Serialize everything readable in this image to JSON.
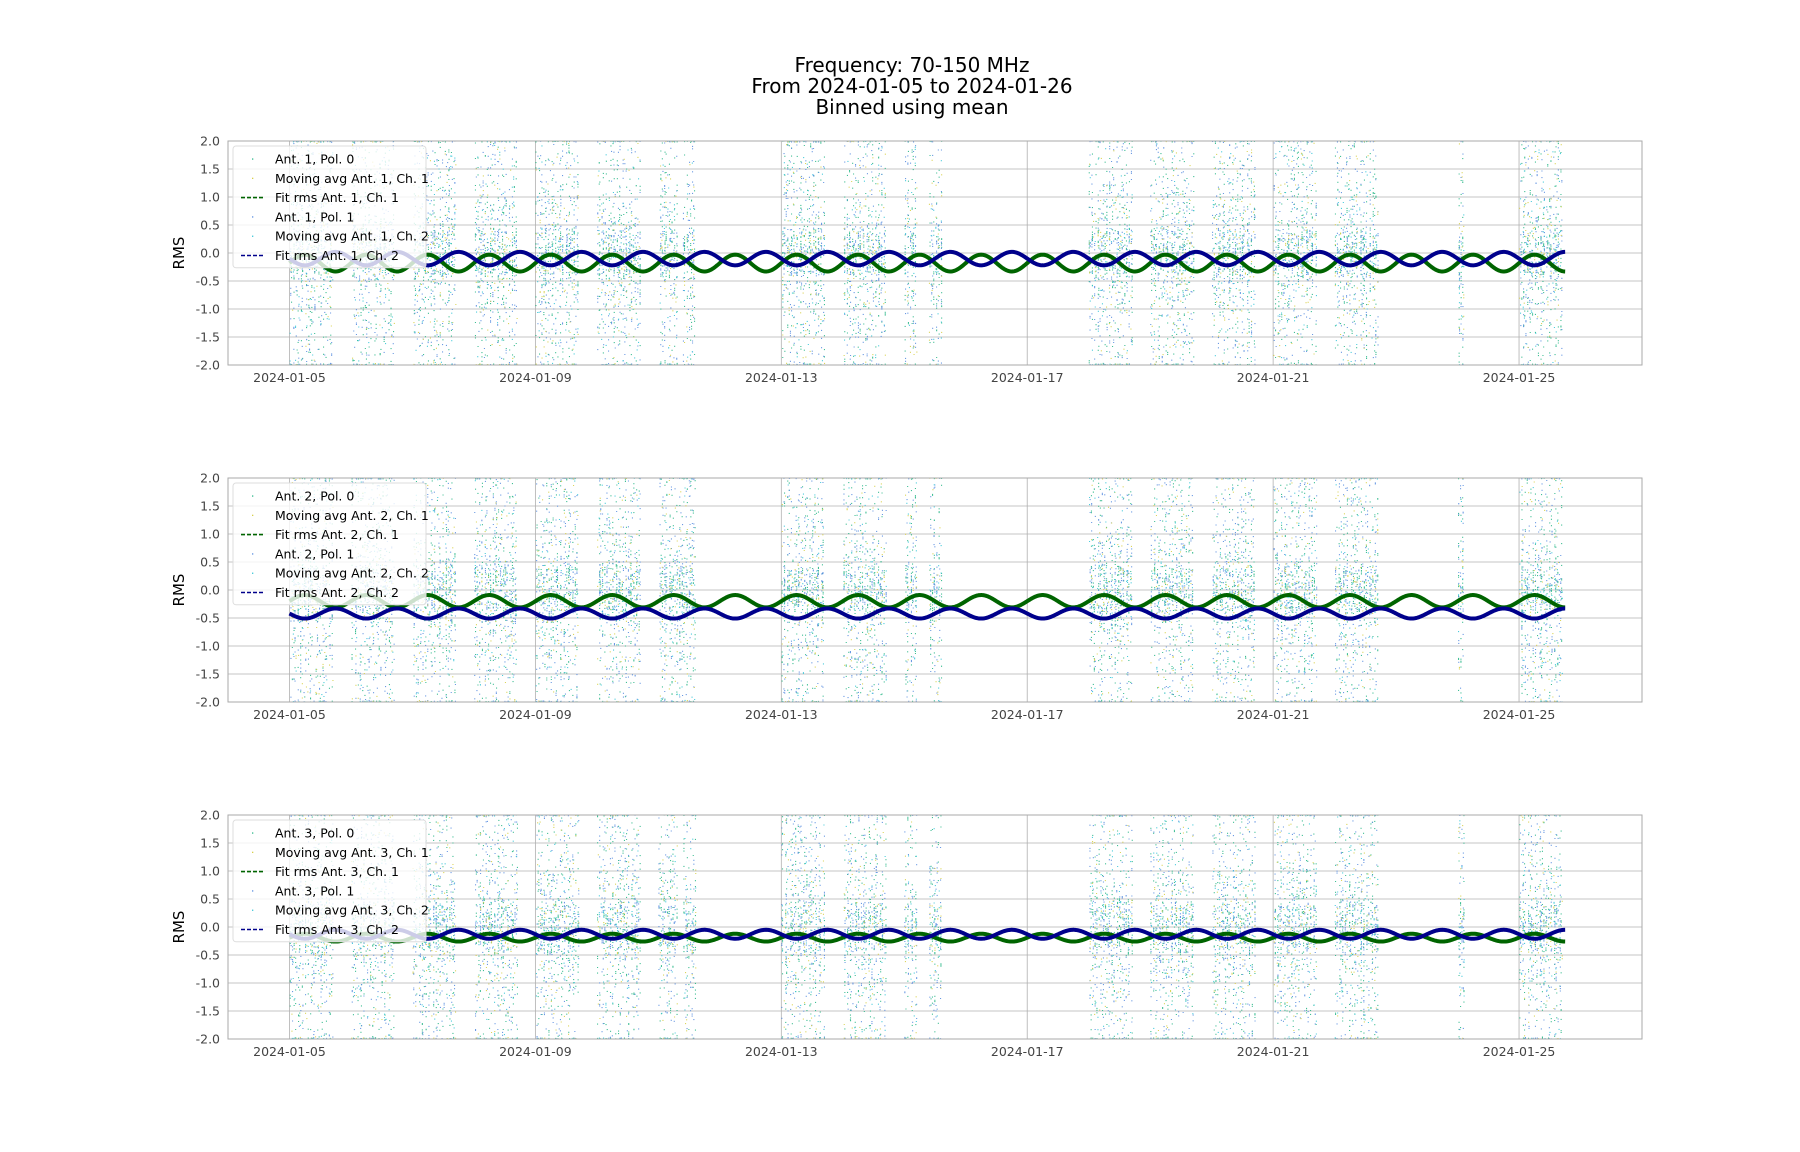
{
  "title_lines": [
    "Frequency: 70-150 MHz",
    "From 2024-01-05 to 2024-01-26",
    "Binned using mean"
  ],
  "colors": {
    "pol0": "#2cb88a",
    "moving_ch1": "#d8d04a",
    "pol1": "#5b8fe0",
    "moving_ch2": "#38c6d8",
    "fit_ch1": "#006400",
    "fit_ch2": "#00008b",
    "grid": "#b0b0b0",
    "axes_edge": "#aaaaaa"
  },
  "chart_data": [
    {
      "type": "scatter",
      "ylabel": "RMS",
      "ylim": [
        -2.0,
        2.0
      ],
      "yticks": [
        "2.0",
        "1.5",
        "1.0",
        "0.5",
        "0.0",
        "-0.5",
        "-1.0",
        "-1.5",
        "-2.0"
      ],
      "xlim": [
        "2024-01-04",
        "2024-01-27"
      ],
      "xticks": [
        "2024-01-05",
        "2024-01-09",
        "2024-01-13",
        "2024-01-17",
        "2024-01-21",
        "2024-01-25"
      ],
      "grid": true,
      "legend_position": "upper-left",
      "legend": [
        {
          "label": "Ant. 1, Pol. 0",
          "style": "dot",
          "color_key": "pol0"
        },
        {
          "label": "Moving avg Ant. 1, Ch. 1",
          "style": "dot",
          "color_key": "moving_ch1"
        },
        {
          "label": "Fit rms Ant. 1, Ch. 1",
          "style": "dashed",
          "color_key": "fit_ch1"
        },
        {
          "label": "Ant. 1, Pol. 1",
          "style": "dot",
          "color_key": "pol1"
        },
        {
          "label": "Moving avg Ant. 1, Ch. 2",
          "style": "dot",
          "color_key": "moving_ch2"
        },
        {
          "label": "Fit rms Ant. 1, Ch. 2",
          "style": "dashed",
          "color_key": "fit_ch2"
        }
      ],
      "data_segments_days": [
        [
          5.0,
          5.7
        ],
        [
          6.0,
          6.7
        ],
        [
          7.0,
          7.7
        ],
        [
          8.0,
          8.7
        ],
        [
          9.0,
          9.7
        ],
        [
          10.0,
          10.7
        ],
        [
          11.0,
          11.3
        ],
        [
          11.4,
          11.6
        ],
        [
          13.0,
          13.7
        ],
        [
          14.0,
          14.7
        ],
        [
          15.0,
          15.2
        ],
        [
          15.4,
          15.6
        ],
        [
          18.0,
          18.7
        ],
        [
          19.0,
          19.7
        ],
        [
          20.0,
          20.7
        ],
        [
          21.0,
          21.7
        ],
        [
          22.0,
          22.7
        ],
        [
          24.0,
          24.1
        ],
        [
          25.0,
          25.7
        ]
      ],
      "fits": [
        {
          "name": "Fit rms Ant. 1, Ch. 1",
          "color_key": "fit_ch1",
          "mean": -0.18,
          "amplitude": 0.15,
          "period_days": 1.0,
          "phase": 0.0,
          "x_range": [
            "2024-01-05",
            "2024-01-25 18:00"
          ]
        },
        {
          "name": "Fit rms Ant. 1, Ch. 2",
          "color_key": "fit_ch2",
          "mean": -0.1,
          "amplitude": 0.12,
          "period_days": 1.0,
          "phase": 3.14159,
          "x_range": [
            "2024-01-05",
            "2024-01-25 18:00"
          ]
        }
      ]
    },
    {
      "type": "scatter",
      "ylabel": "RMS",
      "ylim": [
        -2.0,
        2.0
      ],
      "yticks": [
        "2.0",
        "1.5",
        "1.0",
        "0.5",
        "0.0",
        "-0.5",
        "-1.0",
        "-1.5",
        "-2.0"
      ],
      "xlim": [
        "2024-01-04",
        "2024-01-27"
      ],
      "xticks": [
        "2024-01-05",
        "2024-01-09",
        "2024-01-13",
        "2024-01-17",
        "2024-01-21",
        "2024-01-25"
      ],
      "grid": true,
      "legend_position": "upper-left",
      "legend": [
        {
          "label": "Ant. 2, Pol. 0",
          "style": "dot",
          "color_key": "pol0"
        },
        {
          "label": "Moving avg Ant. 2, Ch. 1",
          "style": "dot",
          "color_key": "moving_ch1"
        },
        {
          "label": "Fit rms Ant. 2, Ch. 1",
          "style": "dashed",
          "color_key": "fit_ch1"
        },
        {
          "label": "Ant. 2, Pol. 1",
          "style": "dot",
          "color_key": "pol1"
        },
        {
          "label": "Moving avg Ant. 2, Ch. 2",
          "style": "dot",
          "color_key": "moving_ch2"
        },
        {
          "label": "Fit rms Ant. 2, Ch. 2",
          "style": "dashed",
          "color_key": "fit_ch2"
        }
      ],
      "data_segments_days": [
        [
          5.0,
          5.7
        ],
        [
          6.0,
          6.7
        ],
        [
          7.0,
          7.7
        ],
        [
          8.0,
          8.7
        ],
        [
          9.0,
          9.7
        ],
        [
          10.0,
          10.7
        ],
        [
          11.0,
          11.5
        ],
        [
          11.5,
          11.6
        ],
        [
          13.0,
          13.7
        ],
        [
          14.0,
          14.7
        ],
        [
          15.0,
          15.2
        ],
        [
          15.4,
          15.6
        ],
        [
          18.0,
          18.7
        ],
        [
          19.0,
          19.7
        ],
        [
          20.0,
          20.7
        ],
        [
          21.0,
          21.7
        ],
        [
          22.0,
          22.7
        ],
        [
          24.0,
          24.1
        ],
        [
          25.0,
          25.7
        ]
      ],
      "fits": [
        {
          "name": "Fit rms Ant. 2, Ch. 1",
          "color_key": "fit_ch1",
          "mean": -0.2,
          "amplitude": 0.11,
          "period_days": 1.0,
          "phase": 0.0,
          "x_range": [
            "2024-01-05",
            "2024-01-25 18:00"
          ]
        },
        {
          "name": "Fit rms Ant. 2, Ch. 2",
          "color_key": "fit_ch2",
          "mean": -0.42,
          "amplitude": 0.09,
          "period_days": 1.0,
          "phase": 3.14159,
          "x_range": [
            "2024-01-05",
            "2024-01-25 18:00"
          ]
        }
      ]
    },
    {
      "type": "scatter",
      "ylabel": "RMS",
      "ylim": [
        -2.0,
        2.0
      ],
      "yticks": [
        "2.0",
        "1.5",
        "1.0",
        "0.5",
        "0.0",
        "-0.5",
        "-1.0",
        "-1.5",
        "-2.0"
      ],
      "xlim": [
        "2024-01-04",
        "2024-01-27"
      ],
      "xticks": [
        "2024-01-05",
        "2024-01-09",
        "2024-01-13",
        "2024-01-17",
        "2024-01-21",
        "2024-01-25"
      ],
      "grid": true,
      "legend_position": "upper-left",
      "legend": [
        {
          "label": "Ant. 3, Pol. 0",
          "style": "dot",
          "color_key": "pol0"
        },
        {
          "label": "Moving avg Ant. 3, Ch. 1",
          "style": "dot",
          "color_key": "moving_ch1"
        },
        {
          "label": "Fit rms Ant. 3, Ch. 1",
          "style": "dashed",
          "color_key": "fit_ch1"
        },
        {
          "label": "Ant. 3, Pol. 1",
          "style": "dot",
          "color_key": "pol1"
        },
        {
          "label": "Moving avg Ant. 3, Ch. 2",
          "style": "dot",
          "color_key": "moving_ch2"
        },
        {
          "label": "Fit rms Ant. 3, Ch. 2",
          "style": "dashed",
          "color_key": "fit_ch2"
        }
      ],
      "data_segments_days": [
        [
          5.0,
          5.7
        ],
        [
          6.0,
          6.7
        ],
        [
          7.0,
          7.7
        ],
        [
          8.0,
          8.7
        ],
        [
          9.0,
          9.7
        ],
        [
          10.0,
          10.7
        ],
        [
          11.0,
          11.3
        ],
        [
          11.4,
          11.6
        ],
        [
          13.0,
          13.7
        ],
        [
          14.0,
          14.7
        ],
        [
          15.0,
          15.2
        ],
        [
          15.4,
          15.6
        ],
        [
          18.0,
          18.7
        ],
        [
          19.0,
          19.7
        ],
        [
          20.0,
          20.7
        ],
        [
          21.0,
          21.7
        ],
        [
          22.0,
          22.7
        ],
        [
          24.0,
          24.1
        ],
        [
          25.0,
          25.7
        ]
      ],
      "fits": [
        {
          "name": "Fit rms Ant. 3, Ch. 1",
          "color_key": "fit_ch1",
          "mean": -0.19,
          "amplitude": 0.07,
          "period_days": 1.0,
          "phase": 0.0,
          "x_range": [
            "2024-01-05",
            "2024-01-25 18:00"
          ]
        },
        {
          "name": "Fit rms Ant. 3, Ch. 2",
          "color_key": "fit_ch2",
          "mean": -0.13,
          "amplitude": 0.08,
          "period_days": 1.0,
          "phase": 3.14159,
          "x_range": [
            "2024-01-05",
            "2024-01-25 18:00"
          ]
        }
      ]
    }
  ]
}
